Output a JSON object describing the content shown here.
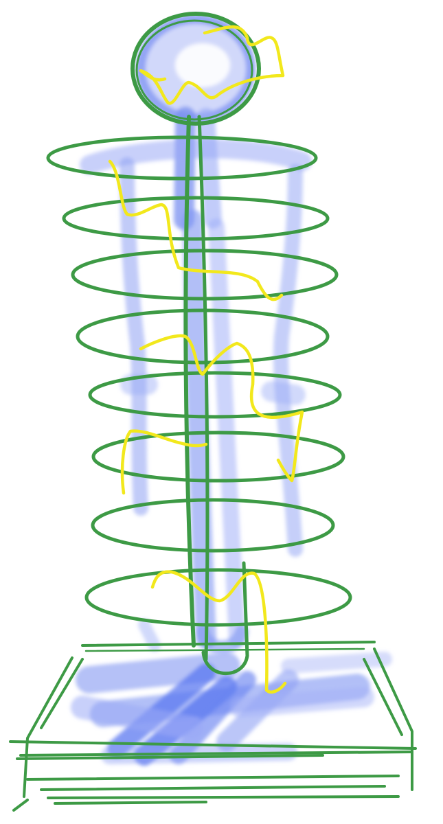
{
  "colors": {
    "background": "#ffffff",
    "figure_blue": "#5b78f0",
    "figure_blue_light": "#9aaaf6",
    "spiral_green": "#3d9a45",
    "scribble_yellow": "#f2e81c"
  },
  "scene": {
    "subjects": [
      "blue-figure",
      "green-spiral-coil",
      "green-pedestal-base",
      "blue-splash",
      "yellow-scribbles"
    ]
  }
}
